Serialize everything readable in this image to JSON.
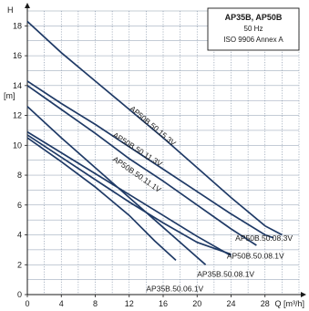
{
  "chart_data": {
    "type": "line",
    "title_lines": [
      "AP35B, AP50B",
      "50 Hz",
      "ISO 9906 Annex A"
    ],
    "ylabel_top": "H",
    "ylabel_unit": "[m]",
    "xlabel": "Q [m³/h]",
    "xlim": [
      0,
      32
    ],
    "ylim": [
      0,
      19
    ],
    "x_ticks": [
      0,
      4,
      8,
      12,
      16,
      20,
      24,
      28
    ],
    "y_ticks": [
      0,
      2,
      4,
      6,
      8,
      10,
      12,
      14,
      16,
      18
    ],
    "grid": true,
    "colors": {
      "curve": "#1f3a66",
      "grid": "#8a99ad",
      "text": "#1a1a1a"
    },
    "series": [
      {
        "name": "AP50B.50.15.3V",
        "x": [
          0,
          4,
          8,
          12,
          16,
          20,
          24,
          28,
          30
        ],
        "y": [
          18.3,
          16.2,
          14.3,
          12.4,
          10.5,
          8.5,
          6.5,
          4.6,
          4.0
        ]
      },
      {
        "name": "AP50B.50.11.3V",
        "x": [
          0,
          4,
          8,
          12,
          16,
          20,
          24,
          28,
          29
        ],
        "y": [
          14.3,
          12.8,
          11.4,
          9.9,
          8.4,
          6.9,
          5.4,
          4.0,
          3.8
        ]
      },
      {
        "name": "AP50B.50.11.1V",
        "x": [
          0,
          4,
          8,
          12,
          16,
          20,
          24,
          27
        ],
        "y": [
          14.0,
          12.4,
          10.8,
          9.1,
          7.6,
          6.0,
          4.4,
          3.3
        ]
      },
      {
        "name": "AP50B.50.08.3V",
        "x": [
          0,
          4,
          8,
          12,
          16,
          20,
          24
        ],
        "y": [
          10.9,
          9.5,
          8.1,
          6.7,
          5.3,
          3.9,
          2.6
        ]
      },
      {
        "name": "AP50B.50.08.1V",
        "x": [
          0,
          4,
          8,
          12,
          16,
          20,
          24
        ],
        "y": [
          10.7,
          9.2,
          7.7,
          6.2,
          4.8,
          3.5,
          2.7
        ]
      },
      {
        "name": "AP35B.50.08.1V",
        "x": [
          0,
          4,
          8,
          12,
          16,
          19,
          21
        ],
        "y": [
          12.6,
          10.5,
          8.5,
          6.5,
          4.5,
          3.0,
          2.0
        ]
      },
      {
        "name": "AP35B.50.06.1V",
        "x": [
          0,
          4,
          8,
          12,
          15,
          17.5
        ],
        "y": [
          10.5,
          8.9,
          7.2,
          5.3,
          3.6,
          2.3
        ]
      }
    ],
    "labels": [
      {
        "text": "AP50B.50.15.3V",
        "series": 0,
        "at_x": 12,
        "at_y": 12.4
      },
      {
        "text": "AP50B.50.11.3V",
        "series": 1,
        "at_x": 10,
        "at_y": 10.6
      },
      {
        "text": "AP50B.50.11.1V",
        "series": 2,
        "at_x": 10,
        "at_y": 9.0
      },
      {
        "text": "AP50B.50.08.3V",
        "at_x": 24.5,
        "at_y": 3.6
      },
      {
        "text": "AP50B.50.08.1V",
        "at_x": 23.5,
        "at_y": 2.4
      },
      {
        "text": "AP35B.50.08.1V",
        "at_x": 20.0,
        "at_y": 1.2
      },
      {
        "text": "AP35B.50.06.1V",
        "at_x": 14.0,
        "at_y": 0.2
      }
    ]
  }
}
